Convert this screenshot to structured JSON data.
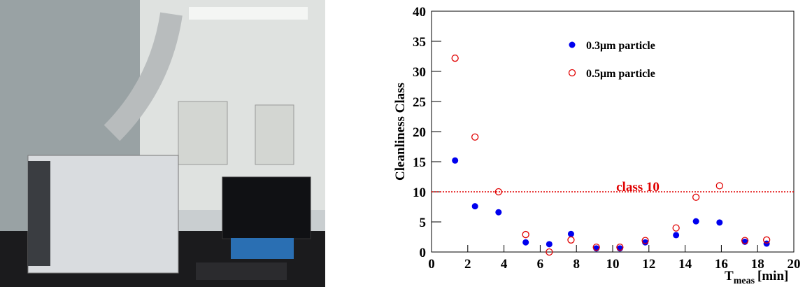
{
  "chart_data": {
    "type": "scatter",
    "ylabel": "Cleanliness Class",
    "xlabel": "T",
    "xlabel_sub": "meas",
    "xlabel_unit": "[min]",
    "x": [
      1.3,
      2.4,
      3.7,
      5.2,
      6.5,
      7.7,
      9.1,
      10.4,
      11.8,
      13.5,
      14.6,
      15.9,
      17.3,
      18.5
    ],
    "series": [
      {
        "name": "0.3μm particle",
        "color": "#0000ee",
        "marker": "filled",
        "values": [
          15.2,
          7.6,
          6.6,
          1.6,
          1.3,
          3.0,
          0.6,
          0.6,
          1.6,
          2.8,
          5.1,
          4.9,
          1.7,
          1.4
        ]
      },
      {
        "name": "0.5μm particle",
        "color": "#e00000",
        "marker": "open",
        "values": [
          32.2,
          19.1,
          10.0,
          2.9,
          0,
          2.0,
          0.8,
          0.8,
          1.9,
          4.0,
          9.1,
          11.0,
          1.9,
          2.0
        ]
      }
    ],
    "hline": {
      "value": 10,
      "label": "class 10",
      "color": "#e00000"
    },
    "xlim": [
      0,
      20
    ],
    "xticks": [
      0,
      2,
      4,
      6,
      8,
      10,
      12,
      14,
      16,
      18,
      20
    ],
    "ylim": [
      0,
      40
    ],
    "yticks": [
      0,
      5,
      10,
      15,
      20,
      25,
      30,
      35,
      40
    ]
  }
}
